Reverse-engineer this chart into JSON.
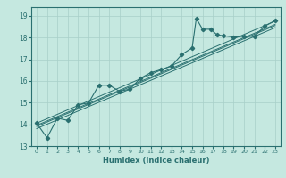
{
  "xlabel": "Humidex (Indice chaleur)",
  "bg_color": "#c5e8e0",
  "grid_color": "#a8cfc8",
  "line_color": "#2a7070",
  "xlim": [
    -0.5,
    23.5
  ],
  "ylim": [
    13.0,
    19.4
  ],
  "xticks": [
    0,
    1,
    2,
    3,
    4,
    5,
    6,
    7,
    8,
    9,
    10,
    11,
    12,
    13,
    14,
    15,
    16,
    17,
    18,
    19,
    20,
    21,
    22,
    23
  ],
  "yticks": [
    13,
    14,
    15,
    16,
    17,
    18,
    19
  ],
  "series_main": [
    [
      0,
      14.05
    ],
    [
      1,
      13.38
    ],
    [
      2,
      14.28
    ],
    [
      3,
      14.18
    ],
    [
      4,
      14.9
    ],
    [
      5,
      14.98
    ],
    [
      6,
      15.8
    ],
    [
      7,
      15.8
    ],
    [
      8,
      15.52
    ],
    [
      9,
      15.62
    ],
    [
      10,
      16.12
    ],
    [
      11,
      16.38
    ],
    [
      12,
      16.52
    ],
    [
      13,
      16.68
    ],
    [
      14,
      17.22
    ],
    [
      15,
      17.52
    ],
    [
      15.4,
      18.88
    ],
    [
      16,
      18.38
    ],
    [
      16.8,
      18.38
    ],
    [
      17.4,
      18.12
    ],
    [
      18,
      18.08
    ],
    [
      19,
      18.02
    ],
    [
      20,
      18.05
    ],
    [
      21,
      18.05
    ],
    [
      22,
      18.52
    ],
    [
      23,
      18.78
    ]
  ],
  "reg_lines": [
    [
      [
        0,
        14.05
      ],
      [
        23,
        18.75
      ]
    ],
    [
      [
        0,
        13.95
      ],
      [
        23,
        18.6
      ]
    ],
    [
      [
        0,
        13.8
      ],
      [
        23,
        18.45
      ]
    ],
    [
      [
        0,
        13.9
      ],
      [
        23,
        18.55
      ]
    ]
  ]
}
